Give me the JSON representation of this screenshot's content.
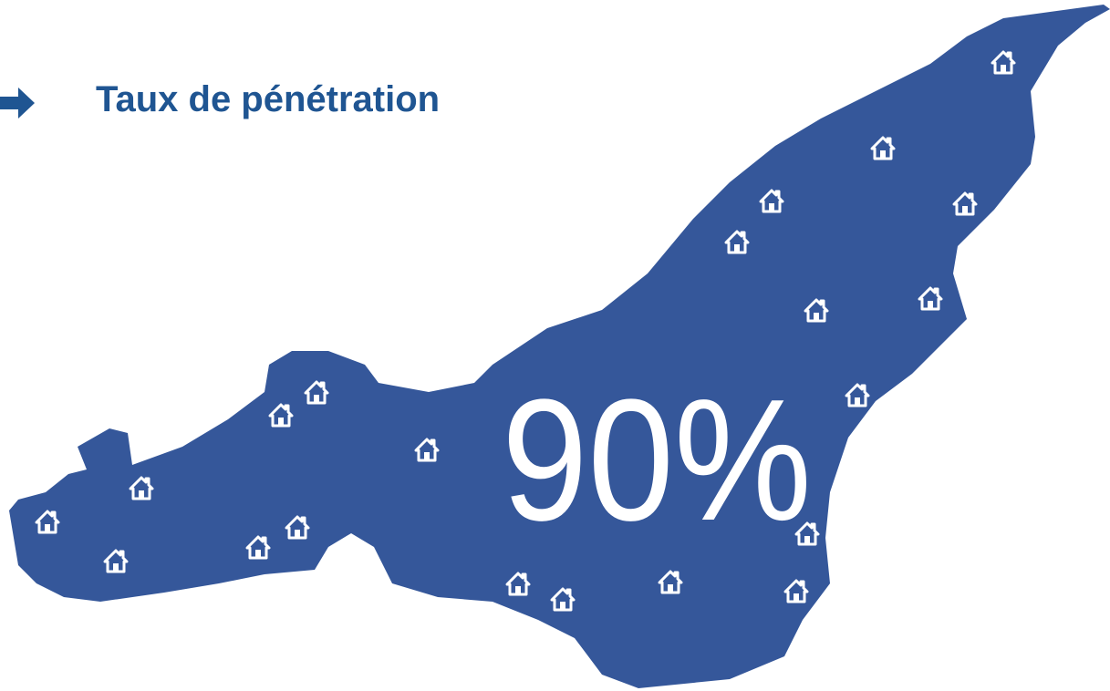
{
  "header": {
    "title": "Taux de pénétration"
  },
  "stat": {
    "label": "90%"
  }
}
